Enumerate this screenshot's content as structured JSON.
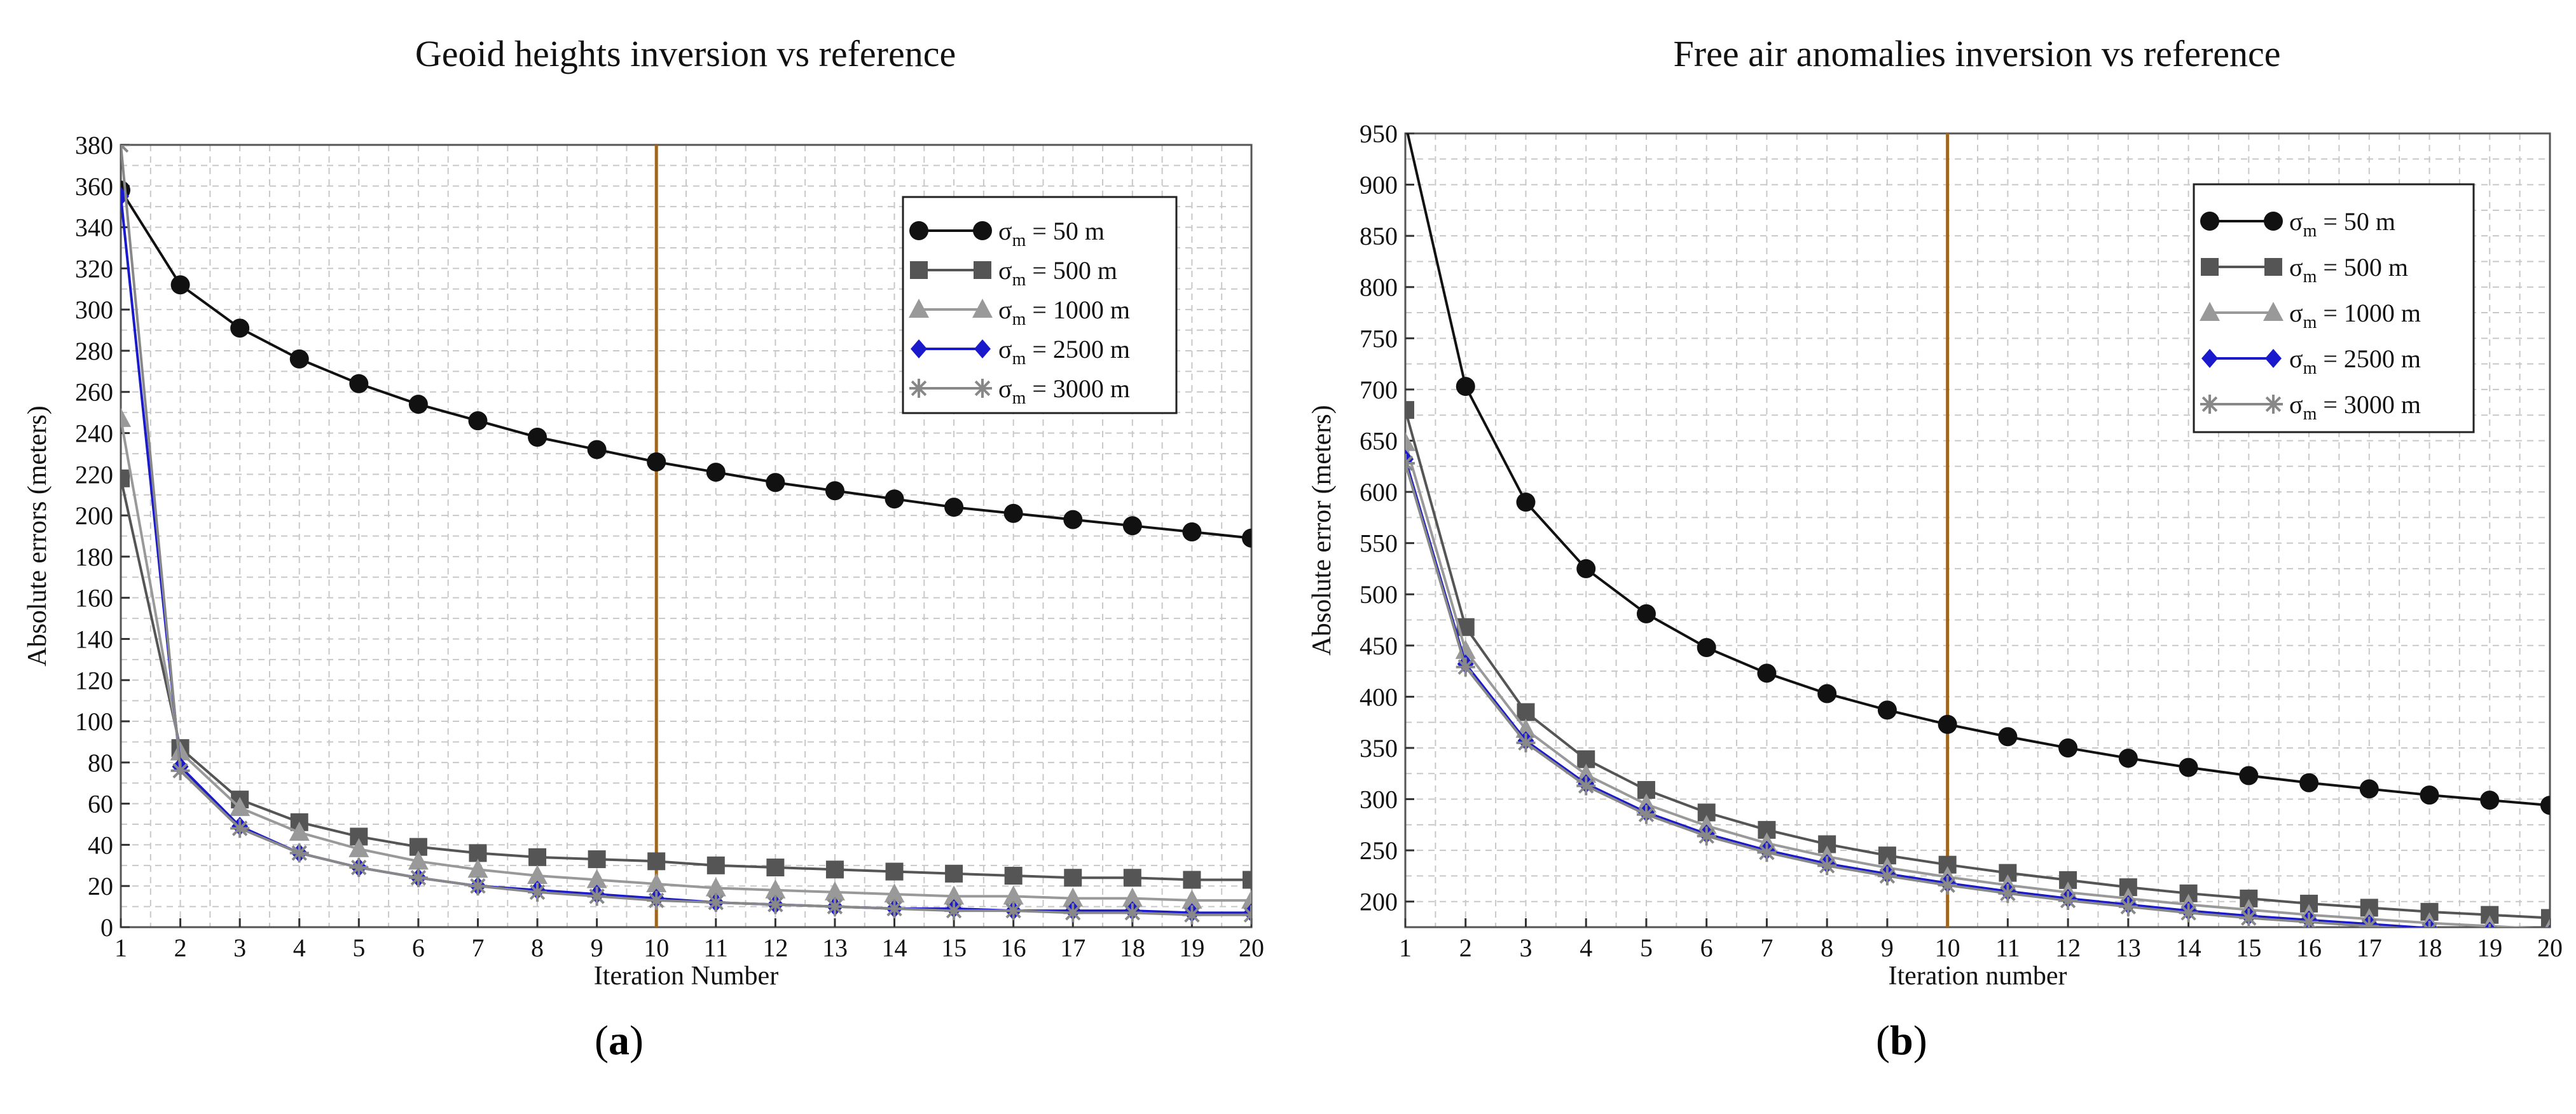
{
  "chart_data": [
    {
      "type": "line",
      "title": "Geoid heights inversion vs reference",
      "xlabel": "Iteration Number",
      "ylabel": "Absolute errors (meters)",
      "xlim": [
        1,
        20
      ],
      "ylim": [
        0,
        380
      ],
      "yticks": [
        0,
        20,
        40,
        60,
        80,
        100,
        120,
        140,
        160,
        180,
        200,
        220,
        240,
        260,
        280,
        300,
        320,
        340,
        360,
        380
      ],
      "x": [
        1,
        2,
        3,
        4,
        5,
        6,
        7,
        8,
        9,
        10,
        11,
        12,
        13,
        14,
        15,
        16,
        17,
        18,
        19,
        20
      ],
      "vline_x": 10,
      "grid": true,
      "legend_position": "top-right",
      "series": [
        {
          "name": "σm = 50    m",
          "sym": "σ",
          "sub": "m",
          "rest": " = 50     m",
          "marker": "circle",
          "color": "#111111",
          "values": [
            358,
            312,
            291,
            276,
            264,
            254,
            246,
            238,
            232,
            226,
            221,
            216,
            212,
            208,
            204,
            201,
            198,
            195,
            192,
            189
          ]
        },
        {
          "name": "σm = 500  m",
          "sym": "σ",
          "sub": "m",
          "rest": " = 500   m",
          "marker": "square",
          "color": "#555555",
          "values": [
            218,
            87,
            62,
            51,
            44,
            39,
            36,
            34,
            33,
            32,
            30,
            29,
            28,
            27,
            26,
            25,
            24,
            24,
            23,
            23
          ]
        },
        {
          "name": "σm = 1000 m",
          "sym": "σ",
          "sub": "m",
          "rest": " = 1000 m",
          "marker": "triangle",
          "color": "#999999",
          "values": [
            247,
            85,
            58,
            46,
            38,
            32,
            28,
            25,
            23,
            21,
            19,
            18,
            17,
            16,
            15,
            15,
            14,
            14,
            13,
            13
          ]
        },
        {
          "name": "σm = 2500 m",
          "sym": "σ",
          "sub": "m",
          "rest": " = 2500 m",
          "marker": "diamond",
          "color": "#1a1acc",
          "values": [
            355,
            78,
            49,
            36,
            29,
            24,
            20,
            18,
            16,
            14,
            12,
            11,
            10,
            9,
            9,
            8,
            8,
            8,
            7,
            7
          ]
        },
        {
          "name": "σm = 3000 m",
          "sym": "σ",
          "sub": "m",
          "rest": " = 3000 m",
          "marker": "star",
          "color": "#888888",
          "values": [
            380,
            76,
            48,
            36,
            29,
            24,
            20,
            17,
            15,
            13,
            12,
            11,
            10,
            9,
            8,
            8,
            7,
            7,
            6,
            6
          ]
        }
      ]
    },
    {
      "type": "line",
      "title": "Free air anomalies inversion vs reference",
      "xlabel": "Iteration number",
      "ylabel": "Absolute error (meters)",
      "xlim": [
        1,
        20
      ],
      "ylim": [
        175,
        950
      ],
      "yticks": [
        200,
        250,
        300,
        350,
        400,
        450,
        500,
        550,
        600,
        650,
        700,
        750,
        800,
        850,
        900,
        950
      ],
      "x": [
        1,
        2,
        3,
        4,
        5,
        6,
        7,
        8,
        9,
        10,
        11,
        12,
        13,
        14,
        15,
        16,
        17,
        18,
        19,
        20
      ],
      "vline_x": 10,
      "grid": true,
      "legend_position": "top-right",
      "series": [
        {
          "name": "σm = 50    m",
          "sym": "σ",
          "sub": "m",
          "rest": " = 50     m",
          "marker": "circle",
          "color": "#111111",
          "values": [
            960,
            703,
            590,
            525,
            481,
            448,
            423,
            403,
            387,
            373,
            361,
            350,
            340,
            331,
            323,
            316,
            310,
            304,
            299,
            294
          ]
        },
        {
          "name": "σm = 500  m",
          "sym": "σ",
          "sub": "m",
          "rest": " = 500   m",
          "marker": "square",
          "color": "#555555",
          "values": [
            680,
            468,
            385,
            339,
            309,
            287,
            270,
            256,
            245,
            236,
            228,
            221,
            214,
            208,
            203,
            198,
            194,
            190,
            187,
            184
          ]
        },
        {
          "name": "σm = 1000 m",
          "sym": "σ",
          "sub": "m",
          "rest": " = 1000 m",
          "marker": "triangle",
          "color": "#999999",
          "values": [
            648,
            445,
            368,
            324,
            295,
            274,
            257,
            244,
            233,
            224,
            216,
            209,
            203,
            197,
            192,
            187,
            183,
            179,
            176,
            173
          ]
        },
        {
          "name": "σm = 2500 m",
          "sym": "σ",
          "sub": "m",
          "rest": " = 2500 m",
          "marker": "diamond",
          "color": "#1a1acc",
          "values": [
            632,
            432,
            357,
            315,
            287,
            266,
            250,
            237,
            227,
            218,
            210,
            203,
            197,
            191,
            186,
            182,
            178,
            174,
            171,
            168
          ]
        },
        {
          "name": "σm = 3000 m",
          "sym": "σ",
          "sub": "m",
          "rest": " = 3000 m",
          "marker": "star",
          "color": "#888888",
          "values": [
            628,
            429,
            355,
            313,
            285,
            264,
            248,
            235,
            225,
            216,
            208,
            201,
            195,
            189,
            184,
            180,
            176,
            172,
            169,
            166
          ]
        }
      ]
    }
  ],
  "captions": {
    "a": "a",
    "b": "b"
  },
  "colors": {
    "vline": "#a0661e",
    "grid": "#c8c8c8",
    "frame": "#555555"
  }
}
